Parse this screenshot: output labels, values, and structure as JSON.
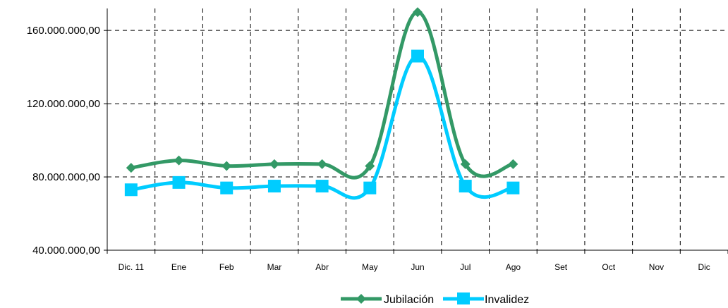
{
  "chart_data": {
    "type": "line",
    "categories": [
      "Dic. 11",
      "Ene",
      "Feb",
      "Mar",
      "Abr",
      "May",
      "Jun",
      "Jul",
      "Ago",
      "Set",
      "Oct",
      "Nov",
      "Dic"
    ],
    "y_ticks": [
      "40.000.000,00",
      "80.000.000,00",
      "120.000.000,00",
      "160.000.000,00"
    ],
    "ylim": [
      40000000,
      172000000
    ],
    "grid": true,
    "legend_position": "bottom",
    "series": [
      {
        "name": "Jubilación",
        "color": "#339966",
        "marker": "diamond",
        "values": [
          85000000,
          89000000,
          86000000,
          87000000,
          87000000,
          86000000,
          170000000,
          87000000,
          87000000,
          null,
          null,
          null,
          null
        ]
      },
      {
        "name": "Invalidez",
        "color": "#00ccff",
        "marker": "square",
        "values": [
          73000000,
          77000000,
          74000000,
          75000000,
          75000000,
          74000000,
          146000000,
          75000000,
          74000000,
          null,
          null,
          null,
          null
        ]
      }
    ]
  }
}
